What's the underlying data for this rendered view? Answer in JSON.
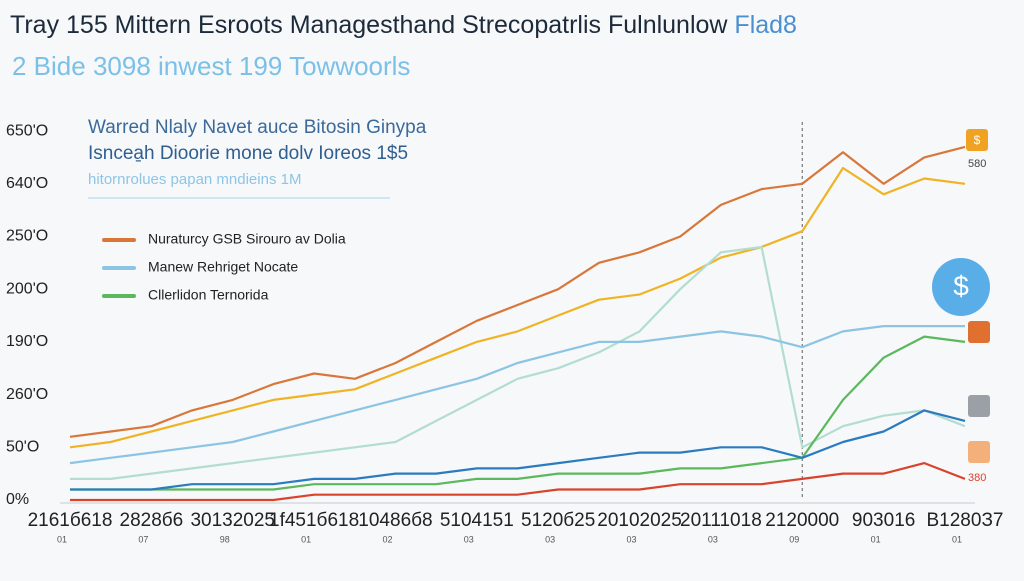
{
  "chart_data": {
    "type": "line",
    "title": "Tray 155 Mittern Esroots Managesthand Strecopatrlis Fulnlunlow",
    "title_tag": "Flad8",
    "subtitle": "2 Bide 3098 inwest 199 Towwoorls",
    "annotations": [
      "Warred Nlaly Navet auce Bitosin Ginypa",
      "Isncea̱h Dioorie mone dolv Ioreos 1$5",
      "hitornrolues papan mndieins 1M"
    ],
    "right_labels": [
      "580",
      "380"
    ],
    "categories": [
      "2161б618",
      null,
      "2828б6",
      null,
      "30132025",
      null,
      "1f451б618",
      null,
      "10486б8",
      null,
      "5104151",
      null,
      "5120б25",
      null,
      "20102025",
      null,
      "20111018",
      null,
      "2120000",
      null,
      "903016",
      null,
      "B1280З7"
    ],
    "category_sublabels": [
      "01",
      null,
      "07",
      null,
      "98",
      null,
      "01",
      null,
      "02",
      null,
      "03",
      null,
      "03",
      null,
      "03",
      null,
      "03",
      null,
      "09",
      null,
      "01",
      null,
      "01"
    ],
    "ylim": [
      0,
      7.4
    ],
    "yticks": [
      {
        "value": 0,
        "label": "0%"
      },
      {
        "value": 1,
        "label": "50'O"
      },
      {
        "value": 2,
        "label": "260'O"
      },
      {
        "value": 3,
        "label": "190'O"
      },
      {
        "value": 4,
        "label": "200'O"
      },
      {
        "value": 5,
        "label": "250'O"
      },
      {
        "value": 6,
        "label": "640'O"
      },
      {
        "value": 7,
        "label": "650'O"
      }
    ],
    "grid": false,
    "legend": "top-left",
    "marker_x": 18,
    "series": [
      {
        "name": "Nuraturcy GSB Sirouro av Dolia",
        "color": "#d9773a",
        "values": [
          1.2,
          1.3,
          1.4,
          1.7,
          1.9,
          2.2,
          2.4,
          2.3,
          2.6,
          3.0,
          3.4,
          3.7,
          4.0,
          4.5,
          4.7,
          5.0,
          5.6,
          5.9,
          6.0,
          6.6,
          6.0,
          6.5,
          6.7
        ]
      },
      {
        "name": null,
        "color": "#f0b323",
        "values": [
          1.0,
          1.1,
          1.3,
          1.5,
          1.7,
          1.9,
          2.0,
          2.1,
          2.4,
          2.7,
          3.0,
          3.2,
          3.5,
          3.8,
          3.9,
          4.2,
          4.6,
          4.8,
          5.1,
          6.3,
          5.8,
          6.1,
          6.0
        ]
      },
      {
        "name": null,
        "color": "#b3ddd0",
        "values": [
          0.4,
          0.4,
          0.5,
          0.6,
          0.7,
          0.8,
          0.9,
          1.0,
          1.1,
          1.5,
          1.9,
          2.3,
          2.5,
          2.8,
          3.2,
          4.0,
          4.7,
          4.8,
          1.0,
          1.4,
          1.6,
          1.7,
          1.4
        ]
      },
      {
        "name": "Manew Rehriget Nocate",
        "color": "#8cc4e3",
        "values": [
          0.7,
          0.8,
          0.9,
          1.0,
          1.1,
          1.3,
          1.5,
          1.7,
          1.9,
          2.1,
          2.3,
          2.6,
          2.8,
          3.0,
          3.0,
          3.1,
          3.2,
          3.1,
          2.9,
          3.2,
          3.3,
          3.3,
          3.3
        ]
      },
      {
        "name": "Cllerlidon Ternorida",
        "color": "#5cb85c",
        "values": [
          0.2,
          0.2,
          0.2,
          0.2,
          0.2,
          0.2,
          0.3,
          0.3,
          0.3,
          0.3,
          0.4,
          0.4,
          0.5,
          0.5,
          0.5,
          0.6,
          0.6,
          0.7,
          0.8,
          1.9,
          2.7,
          3.1,
          3.0
        ]
      },
      {
        "name": null,
        "color": "#2b7bbf",
        "values": [
          0.2,
          0.2,
          0.2,
          0.3,
          0.3,
          0.3,
          0.4,
          0.4,
          0.5,
          0.5,
          0.6,
          0.6,
          0.7,
          0.8,
          0.9,
          0.9,
          1.0,
          1.0,
          0.8,
          1.1,
          1.3,
          1.7,
          1.5
        ]
      },
      {
        "name": null,
        "color": "#d9432c",
        "values": [
          0,
          0,
          0,
          0,
          0,
          0,
          0.1,
          0.1,
          0.1,
          0.1,
          0.1,
          0.1,
          0.2,
          0.2,
          0.2,
          0.3,
          0.3,
          0.3,
          0.4,
          0.5,
          0.5,
          0.7,
          0.4
        ]
      }
    ]
  }
}
